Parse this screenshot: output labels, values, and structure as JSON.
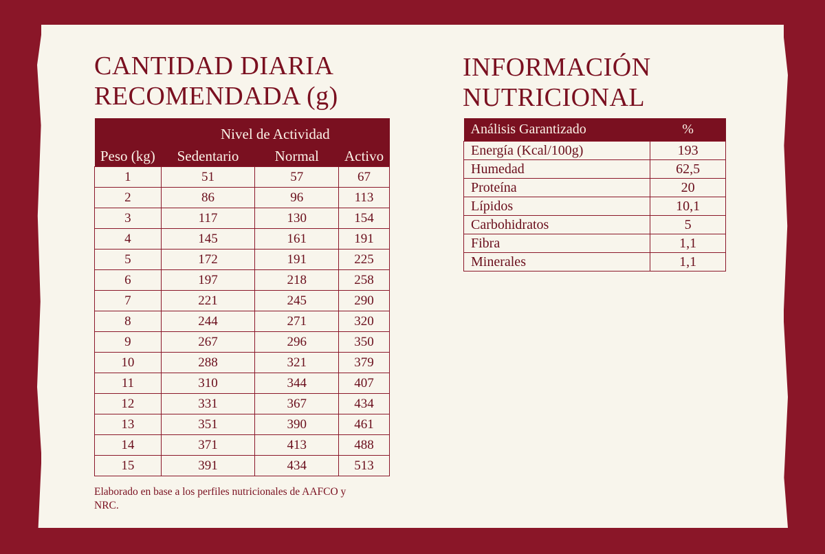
{
  "left": {
    "title_line1": "CANTIDAD DIARIA",
    "title_line2": "RECOMENDADA (g)",
    "group_header": "Nivel de Actividad",
    "columns": [
      "Peso (kg)",
      "Sedentario",
      "Normal",
      "Activo"
    ],
    "rows": [
      [
        "1",
        "51",
        "57",
        "67"
      ],
      [
        "2",
        "86",
        "96",
        "113"
      ],
      [
        "3",
        "117",
        "130",
        "154"
      ],
      [
        "4",
        "145",
        "161",
        "191"
      ],
      [
        "5",
        "172",
        "191",
        "225"
      ],
      [
        "6",
        "197",
        "218",
        "258"
      ],
      [
        "7",
        "221",
        "245",
        "290"
      ],
      [
        "8",
        "244",
        "271",
        "320"
      ],
      [
        "9",
        "267",
        "296",
        "350"
      ],
      [
        "10",
        "288",
        "321",
        "379"
      ],
      [
        "11",
        "310",
        "344",
        "407"
      ],
      [
        "12",
        "331",
        "367",
        "434"
      ],
      [
        "13",
        "351",
        "390",
        "461"
      ],
      [
        "14",
        "371",
        "413",
        "488"
      ],
      [
        "15",
        "391",
        "434",
        "513"
      ]
    ],
    "footnote": "Elaborado en base a los perfiles nutricionales de AAFCO y NRC."
  },
  "right": {
    "title_line1": "INFORMACIÓN",
    "title_line2": "NUTRICIONAL",
    "header_label": "Análisis Garantizado",
    "header_unit": "%",
    "rows": [
      [
        "Energía (Kcal/100g)",
        "193"
      ],
      [
        "Humedad",
        "62,5"
      ],
      [
        "Proteína",
        "20"
      ],
      [
        "Lípidos",
        "10,1"
      ],
      [
        "Carbohidratos",
        "5"
      ],
      [
        "Fibra",
        "1,1"
      ],
      [
        "Minerales",
        "1,1"
      ]
    ]
  },
  "colors": {
    "background": "#8a1628",
    "paper": "#f8f5ec",
    "accent": "#7a1020"
  }
}
